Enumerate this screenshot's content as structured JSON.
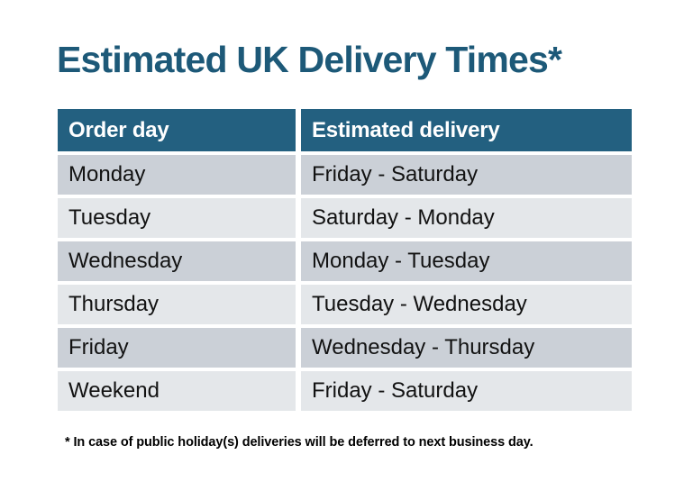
{
  "title": "Estimated UK Delivery Times*",
  "table": {
    "headers": [
      "Order day",
      "Estimated delivery"
    ],
    "rows": [
      {
        "order_day": "Monday",
        "estimated_delivery": "Friday - Saturday"
      },
      {
        "order_day": "Tuesday",
        "estimated_delivery": "Saturday - Monday"
      },
      {
        "order_day": "Wednesday",
        "estimated_delivery": "Monday - Tuesday"
      },
      {
        "order_day": "Thursday",
        "estimated_delivery": "Tuesday - Wednesday"
      },
      {
        "order_day": "Friday",
        "estimated_delivery": "Wednesday - Thursday"
      },
      {
        "order_day": "Weekend",
        "estimated_delivery": "Friday - Saturday"
      }
    ]
  },
  "footnote": "* In case of public holiday(s) deliveries will be deferred to next business day.",
  "colors": {
    "page_bg": "#ffffff",
    "title_text": "#1d5978",
    "header_bg": "#236080",
    "header_text": "#ffffff",
    "row_odd_bg": "#cbd0d7",
    "row_even_bg": "#e4e7ea",
    "body_text": "#121212",
    "footnote_text": "#000000"
  },
  "chart_data": {
    "type": "table",
    "title": "Estimated UK Delivery Times*",
    "columns": [
      "Order day",
      "Estimated delivery"
    ],
    "rows": [
      [
        "Monday",
        "Friday - Saturday"
      ],
      [
        "Tuesday",
        "Saturday - Monday"
      ],
      [
        "Wednesday",
        "Monday - Tuesday"
      ],
      [
        "Thursday",
        "Tuesday - Wednesday"
      ],
      [
        "Friday",
        "Wednesday - Thursday"
      ],
      [
        "Weekend",
        "Friday - Saturday"
      ]
    ],
    "annotations": [
      "* In case of public holiday(s) deliveries will be deferred to next business day."
    ]
  }
}
